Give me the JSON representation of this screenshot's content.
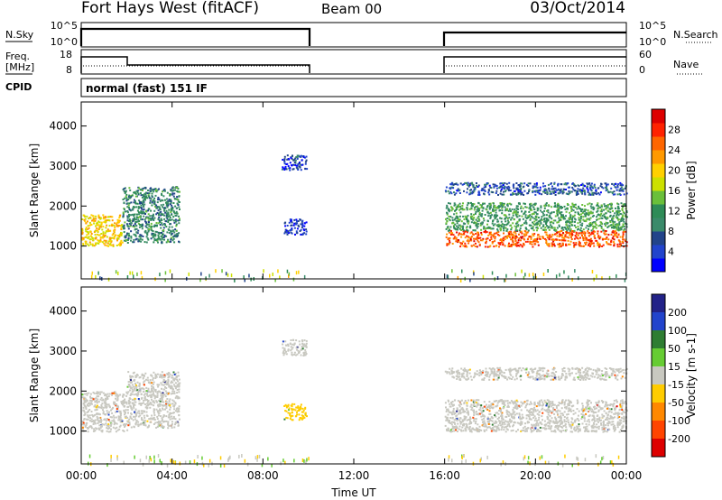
{
  "header": {
    "title": "Fort Hays West (fitACF)",
    "beam": "Beam 00",
    "date": "03/Oct/2014"
  },
  "top_panels": {
    "nsky_label": "N.Sky",
    "nsearch_label": "N.Search",
    "noise_ticks": [
      "10^5",
      "10^0"
    ],
    "freq_label": "Freq.",
    "freq_unit": "[MHz]",
    "freq_ticks": [
      "18",
      "8"
    ],
    "nave_label": "Nave",
    "nave_ticks": [
      "60",
      "0"
    ],
    "cpid_label": "CPID",
    "cpid_text": "normal (fast) 151 IF"
  },
  "colors": {
    "power": [
      "#0000ff",
      "#2244cc",
      "#22448a",
      "#3a8a6a",
      "#2e8b57",
      "#6abf3a",
      "#cce000",
      "#ffd000",
      "#ff9900",
      "#ff6600",
      "#ff2200",
      "#dd0000"
    ],
    "velocity": [
      "#222288",
      "#2244cc",
      "#2e7d32",
      "#66cc33",
      "#c8c8c0",
      "#ffcc00",
      "#ff8800",
      "#ff4400",
      "#dd0000"
    ]
  },
  "chart_data": [
    {
      "type": "heatmap",
      "panel": "power",
      "xlabel": "",
      "ylabel": "Slant Range [km]",
      "y_ticks": [
        "1000",
        "2000",
        "3000",
        "4000"
      ],
      "ylim": [
        180,
        4600
      ],
      "x_ticks": [
        "00:00",
        "04:00",
        "08:00",
        "12:00",
        "16:00",
        "20:00",
        "00:00"
      ],
      "xlim_hours": [
        0,
        24
      ],
      "colorbar_label": "Power [dB]",
      "colorbar_ticks": [
        "4",
        "8",
        "12",
        "16",
        "20",
        "24",
        "28"
      ],
      "colorbar_range": [
        0,
        32
      ],
      "data_gaps_hours": [
        [
          10,
          16
        ]
      ],
      "features": [
        {
          "t": [
            0,
            1.8
          ],
          "range_km": [
            1000,
            1800
          ],
          "value_db": 20
        },
        {
          "t": [
            1.8,
            4.3
          ],
          "range_km": [
            1100,
            2500
          ],
          "value_db": 10
        },
        {
          "t": [
            8.8,
            9.9
          ],
          "range_km": [
            2900,
            3300
          ],
          "value_db": 5
        },
        {
          "t": [
            8.9,
            9.9
          ],
          "range_km": [
            1300,
            1700
          ],
          "value_db": 4
        },
        {
          "t": [
            16,
            24
          ],
          "range_km": [
            1000,
            1400
          ],
          "value_db": 26
        },
        {
          "t": [
            16,
            24
          ],
          "range_km": [
            1400,
            2100
          ],
          "value_db": 12
        },
        {
          "t": [
            16,
            24
          ],
          "range_km": [
            2300,
            2600
          ],
          "value_db": 6
        }
      ]
    },
    {
      "type": "heatmap",
      "panel": "velocity",
      "xlabel": "Time UT",
      "ylabel": "Slant Range [km]",
      "y_ticks": [
        "1000",
        "2000",
        "3000",
        "4000"
      ],
      "ylim": [
        180,
        4600
      ],
      "x_ticks": [
        "00:00",
        "04:00",
        "08:00",
        "12:00",
        "16:00",
        "20:00",
        "00:00"
      ],
      "xlim_hours": [
        0,
        24
      ],
      "colorbar_label": "Velocity [m s-1]",
      "colorbar_ticks": [
        "200",
        "100",
        "50",
        "15",
        "-15",
        "-50",
        "-100",
        "-200"
      ],
      "colorbar_range": [
        -250,
        250
      ],
      "data_gaps_hours": [
        [
          10,
          16
        ]
      ],
      "features": [
        {
          "t": [
            0,
            2
          ],
          "range_km": [
            1000,
            2000
          ],
          "value_ms": 0
        },
        {
          "t": [
            2,
            4.3
          ],
          "range_km": [
            1100,
            2500
          ],
          "value_ms": 0
        },
        {
          "t": [
            8.8,
            9.9
          ],
          "range_km": [
            2900,
            3300
          ],
          "value_ms": 0
        },
        {
          "t": [
            8.9,
            9.9
          ],
          "range_km": [
            1300,
            1700
          ],
          "value_ms": -60
        },
        {
          "t": [
            16,
            24
          ],
          "range_km": [
            1000,
            1800
          ],
          "value_ms": 0
        },
        {
          "t": [
            16,
            24
          ],
          "range_km": [
            2300,
            2600
          ],
          "value_ms": 0
        }
      ]
    }
  ]
}
